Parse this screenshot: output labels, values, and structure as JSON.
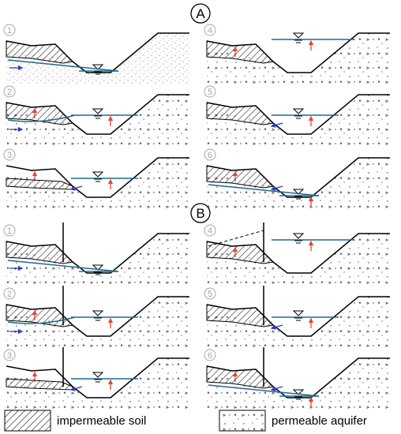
{
  "section_a": {
    "label": "A"
  },
  "section_b": {
    "label": "B"
  },
  "legend": {
    "impermeable_label": "impermeable soil",
    "permeable_label": "permeable aquifer"
  },
  "colors": {
    "water": "#1e6a8c",
    "flow_arrow": "#2b3fc4",
    "pressure_arrow": "#e6443a",
    "ground_line": "#000000",
    "stage_number": "#a6a6a6"
  },
  "panels": [
    {
      "section": "A",
      "stage": "1",
      "variant": "a1"
    },
    {
      "section": "A",
      "stage": "2",
      "variant": "a2"
    },
    {
      "section": "A",
      "stage": "3",
      "variant": "a3"
    },
    {
      "section": "A",
      "stage": "4",
      "variant": "a4"
    },
    {
      "section": "A",
      "stage": "5",
      "variant": "a5"
    },
    {
      "section": "A",
      "stage": "6",
      "variant": "a6"
    },
    {
      "section": "B",
      "stage": "1",
      "variant": "b1"
    },
    {
      "section": "B",
      "stage": "2",
      "variant": "b2"
    },
    {
      "section": "B",
      "stage": "3",
      "variant": "b3"
    },
    {
      "section": "B",
      "stage": "4",
      "variant": "b4"
    },
    {
      "section": "B",
      "stage": "5",
      "variant": "b5"
    },
    {
      "section": "B",
      "stage": "6",
      "variant": "b6"
    }
  ]
}
